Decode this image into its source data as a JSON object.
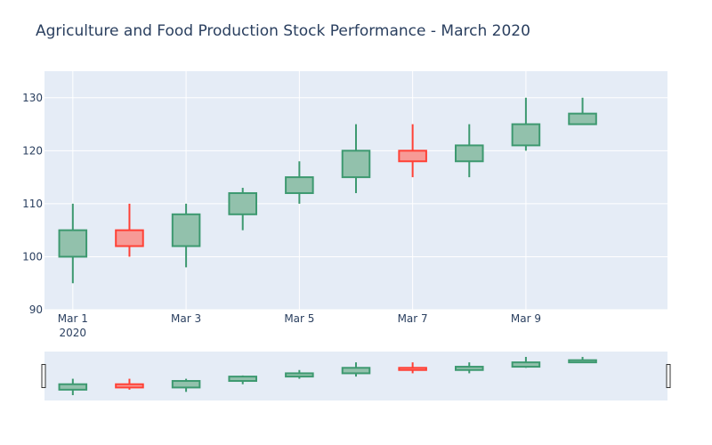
{
  "chart_data": {
    "type": "candlestick",
    "title": "Agriculture and Food Production Stock Performance - March 2020",
    "xlabel": "",
    "ylabel": "",
    "ylim": [
      90,
      135
    ],
    "y_ticks": [
      90,
      100,
      110,
      120,
      130
    ],
    "x_ticks": [
      {
        "date": "2020-03-01",
        "label": "Mar 1",
        "sublabel": "2020"
      },
      {
        "date": "2020-03-03",
        "label": "Mar 3",
        "sublabel": ""
      },
      {
        "date": "2020-03-05",
        "label": "Mar 5",
        "sublabel": ""
      },
      {
        "date": "2020-03-07",
        "label": "Mar 7",
        "sublabel": ""
      },
      {
        "date": "2020-03-09",
        "label": "Mar 9",
        "sublabel": ""
      }
    ],
    "xlim": [
      "2020-02-29T12:00",
      "2020-03-11T12:00"
    ],
    "grid": true,
    "rangeslider": true,
    "colors": {
      "increasing": "#3d9970",
      "increasing_fill": "#92c1ac",
      "decreasing": "#ff4136",
      "decreasing_fill": "#f79a96",
      "plot_bg": "#e5ecf6",
      "grid": "#ffffff",
      "text": "#2a3f5f"
    },
    "candles": [
      {
        "date": "2020-03-01",
        "open": 100,
        "high": 110,
        "low": 95,
        "close": 105
      },
      {
        "date": "2020-03-02",
        "open": 105,
        "high": 110,
        "low": 100,
        "close": 102
      },
      {
        "date": "2020-03-03",
        "open": 102,
        "high": 110,
        "low": 98,
        "close": 108
      },
      {
        "date": "2020-03-04",
        "open": 108,
        "high": 113,
        "low": 105,
        "close": 112
      },
      {
        "date": "2020-03-05",
        "open": 112,
        "high": 118,
        "low": 110,
        "close": 115
      },
      {
        "date": "2020-03-06",
        "open": 115,
        "high": 125,
        "low": 112,
        "close": 120
      },
      {
        "date": "2020-03-07",
        "open": 120,
        "high": 125,
        "low": 115,
        "close": 118
      },
      {
        "date": "2020-03-08",
        "open": 118,
        "high": 125,
        "low": 115,
        "close": 121
      },
      {
        "date": "2020-03-09",
        "open": 121,
        "high": 130,
        "low": 120,
        "close": 125
      },
      {
        "date": "2020-03-10",
        "open": 125,
        "high": 130,
        "low": 125,
        "close": 127
      }
    ]
  }
}
